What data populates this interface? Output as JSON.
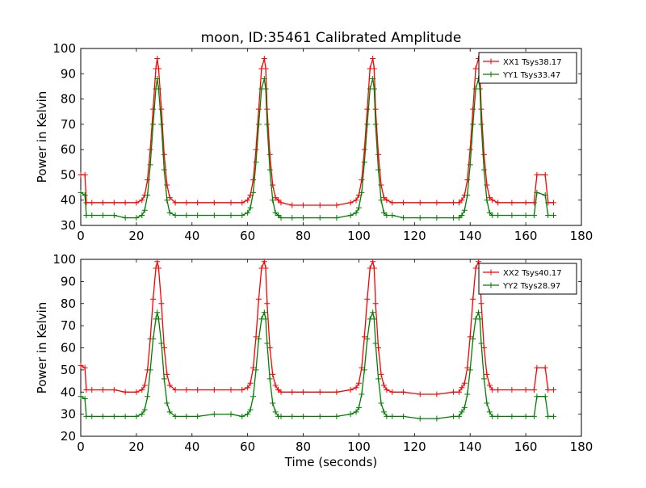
{
  "figure": {
    "title": "moon, ID:35461 Calibrated Amplitude",
    "xlabel": "Time (seconds)"
  },
  "chart_data": [
    {
      "type": "line",
      "title": "moon, ID:35461 Calibrated Amplitude",
      "xlabel": "",
      "ylabel": "Power in Kelvin",
      "xlim": [
        0,
        180
      ],
      "ylim": [
        30,
        100
      ],
      "xticks": [
        0,
        20,
        40,
        60,
        80,
        100,
        120,
        140,
        160,
        180
      ],
      "yticks": [
        30,
        40,
        50,
        60,
        70,
        80,
        90,
        100
      ],
      "grid": false,
      "legend_position": "top-right",
      "series": [
        {
          "name": "XX1 Tsys38.17",
          "color": "#ff0000",
          "marker": "+",
          "x": [
            0,
            1.5,
            2,
            4,
            8,
            12,
            16,
            20,
            22,
            23,
            24,
            25,
            26,
            27,
            27.5,
            28,
            29,
            30,
            31,
            32,
            34,
            38,
            42,
            48,
            54,
            58,
            60,
            61,
            62,
            63,
            64,
            65,
            66,
            66.5,
            67,
            68,
            69,
            70,
            71,
            72,
            76,
            80,
            86,
            92,
            97,
            99,
            100,
            101,
            102,
            103,
            104,
            105,
            105.5,
            106,
            107,
            108,
            109,
            110,
            112,
            116,
            122,
            128,
            134,
            136,
            137,
            138,
            139,
            140,
            141,
            142,
            143,
            143.5,
            144,
            145,
            146,
            147,
            148,
            150,
            155,
            160,
            163,
            164,
            167,
            168,
            170
          ],
          "y": [
            50,
            50,
            39,
            39,
            39,
            39,
            39,
            39,
            40,
            42,
            48,
            60,
            76,
            92,
            96,
            92,
            76,
            58,
            46,
            41,
            39,
            39,
            39,
            39,
            39,
            39,
            40,
            42,
            48,
            60,
            76,
            92,
            96,
            92,
            76,
            58,
            46,
            41,
            40,
            39,
            38,
            38,
            38,
            38,
            39,
            40,
            42,
            48,
            60,
            76,
            92,
            96,
            92,
            76,
            58,
            46,
            41,
            40,
            39,
            39,
            39,
            39,
            39,
            39,
            40,
            42,
            48,
            60,
            76,
            92,
            96,
            92,
            76,
            58,
            46,
            41,
            40,
            39,
            39,
            39,
            39,
            50,
            50,
            39,
            39
          ]
        },
        {
          "name": "YY1 Tsys33.47",
          "color": "#007f00",
          "marker": "+",
          "x": [
            0,
            1.5,
            2,
            4,
            8,
            12,
            16,
            20,
            22,
            23,
            24,
            25,
            26,
            27,
            27.5,
            28,
            29,
            30,
            31,
            32,
            34,
            38,
            42,
            48,
            54,
            58,
            60,
            61,
            62,
            63,
            64,
            65,
            66,
            66.5,
            67,
            68,
            69,
            70,
            71,
            72,
            76,
            80,
            86,
            92,
            97,
            99,
            100,
            101,
            102,
            103,
            104,
            105,
            105.5,
            106,
            107,
            108,
            109,
            110,
            112,
            116,
            122,
            128,
            134,
            136,
            137,
            138,
            139,
            140,
            141,
            142,
            143,
            143.5,
            144,
            145,
            146,
            147,
            148,
            150,
            155,
            160,
            163,
            164,
            167,
            168,
            170
          ],
          "y": [
            43,
            42,
            34,
            34,
            34,
            34,
            33,
            33,
            34,
            36,
            42,
            54,
            70,
            84,
            88,
            84,
            70,
            52,
            40,
            35,
            34,
            34,
            34,
            34,
            34,
            34,
            35,
            37,
            43,
            55,
            70,
            84,
            88,
            84,
            70,
            52,
            40,
            35,
            34,
            33,
            33,
            33,
            33,
            33,
            34,
            35,
            37,
            43,
            55,
            70,
            84,
            88,
            84,
            70,
            52,
            40,
            35,
            34,
            34,
            33,
            33,
            33,
            33,
            33,
            34,
            36,
            42,
            54,
            70,
            84,
            88,
            84,
            70,
            52,
            40,
            35,
            34,
            34,
            34,
            34,
            34,
            43,
            42,
            34,
            34
          ]
        }
      ]
    },
    {
      "type": "line",
      "title": "",
      "xlabel": "Time (seconds)",
      "ylabel": "Power in Kelvin",
      "xlim": [
        0,
        180
      ],
      "ylim": [
        20,
        100
      ],
      "xticks": [
        0,
        20,
        40,
        60,
        80,
        100,
        120,
        140,
        160,
        180
      ],
      "yticks": [
        20,
        30,
        40,
        50,
        60,
        70,
        80,
        90,
        100
      ],
      "grid": false,
      "legend_position": "top-right",
      "series": [
        {
          "name": "XX2 Tsys40.17",
          "color": "#ff0000",
          "marker": "+",
          "x": [
            0,
            1.5,
            2,
            4,
            8,
            12,
            16,
            20,
            22,
            23,
            24,
            25,
            26,
            27,
            27.5,
            28,
            29,
            30,
            31,
            32,
            34,
            38,
            42,
            48,
            54,
            58,
            60,
            61,
            62,
            63,
            64,
            65,
            66,
            66.5,
            67,
            68,
            69,
            70,
            71,
            72,
            76,
            80,
            86,
            92,
            97,
            99,
            100,
            101,
            102,
            103,
            104,
            105,
            105.5,
            106,
            107,
            108,
            109,
            110,
            112,
            116,
            122,
            128,
            134,
            136,
            137,
            138,
            139,
            140,
            141,
            142,
            143,
            143.5,
            144,
            145,
            146,
            147,
            148,
            150,
            155,
            160,
            163,
            164,
            167,
            168,
            170
          ],
          "y": [
            52,
            51,
            41,
            41,
            41,
            41,
            40,
            40,
            41,
            43,
            50,
            64,
            82,
            96,
            99,
            96,
            80,
            60,
            48,
            43,
            41,
            41,
            41,
            41,
            41,
            41,
            42,
            44,
            51,
            65,
            82,
            96,
            99,
            96,
            80,
            60,
            48,
            43,
            41,
            40,
            40,
            40,
            40,
            40,
            41,
            42,
            44,
            51,
            65,
            82,
            96,
            99,
            96,
            80,
            60,
            48,
            43,
            41,
            40,
            40,
            39,
            39,
            40,
            40,
            42,
            44,
            51,
            65,
            82,
            96,
            99,
            96,
            80,
            60,
            48,
            43,
            41,
            41,
            41,
            41,
            41,
            51,
            51,
            41,
            41
          ]
        },
        {
          "name": "YY2 Tsys28.97",
          "color": "#007f00",
          "marker": "+",
          "x": [
            0,
            1.5,
            2,
            4,
            8,
            12,
            16,
            20,
            22,
            23,
            24,
            25,
            26,
            27,
            27.5,
            28,
            29,
            30,
            31,
            32,
            34,
            38,
            42,
            48,
            54,
            58,
            60,
            61,
            62,
            63,
            64,
            65,
            66,
            66.5,
            67,
            68,
            69,
            70,
            71,
            72,
            76,
            80,
            86,
            92,
            97,
            99,
            100,
            101,
            102,
            103,
            104,
            105,
            105.5,
            106,
            107,
            108,
            109,
            110,
            112,
            116,
            122,
            128,
            134,
            136,
            137,
            138,
            139,
            140,
            141,
            142,
            143,
            143.5,
            144,
            145,
            146,
            147,
            148,
            150,
            155,
            160,
            163,
            164,
            167,
            168,
            170
          ],
          "y": [
            38,
            37,
            29,
            29,
            29,
            29,
            29,
            29,
            30,
            32,
            38,
            50,
            64,
            73,
            76,
            73,
            62,
            46,
            35,
            31,
            29,
            29,
            29,
            30,
            30,
            29,
            30,
            32,
            38,
            50,
            64,
            73,
            76,
            73,
            62,
            46,
            35,
            31,
            29,
            29,
            29,
            29,
            29,
            29,
            30,
            31,
            33,
            39,
            50,
            64,
            73,
            76,
            73,
            62,
            46,
            35,
            31,
            29,
            29,
            29,
            28,
            28,
            29,
            29,
            31,
            33,
            39,
            50,
            64,
            73,
            76,
            73,
            62,
            46,
            35,
            31,
            29,
            29,
            29,
            29,
            29,
            38,
            38,
            29,
            29
          ]
        }
      ]
    }
  ]
}
